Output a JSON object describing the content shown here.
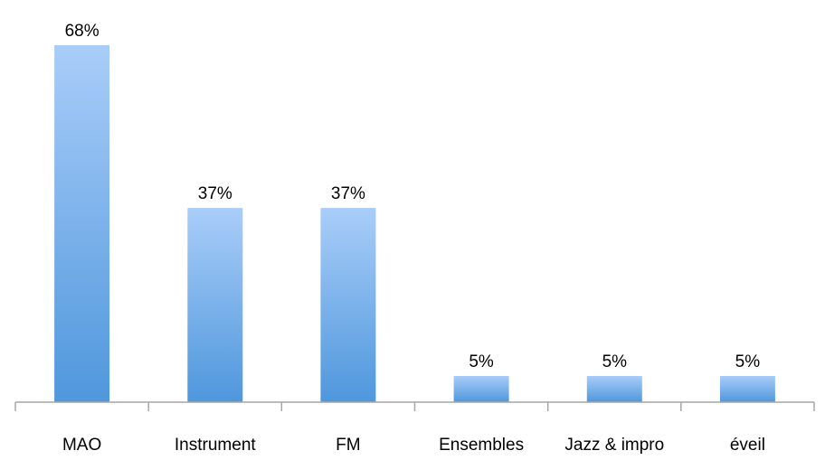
{
  "chart_data": {
    "type": "bar",
    "categories": [
      "MAO",
      "Instrument",
      "FM",
      "Ensembles",
      "Jazz & impro",
      "éveil"
    ],
    "values": [
      68,
      37,
      37,
      5,
      5,
      5
    ],
    "value_labels": [
      "68%",
      "37%",
      "37%",
      "5%",
      "5%",
      "5%"
    ],
    "title": "",
    "xlabel": "",
    "ylabel": "",
    "ylim": [
      0,
      68
    ],
    "grid": false,
    "legend": "none",
    "colors": {
      "bar_top": "#a9cdf9",
      "bar_bottom": "#4f97dc",
      "axis": "#a6a6a6"
    }
  }
}
